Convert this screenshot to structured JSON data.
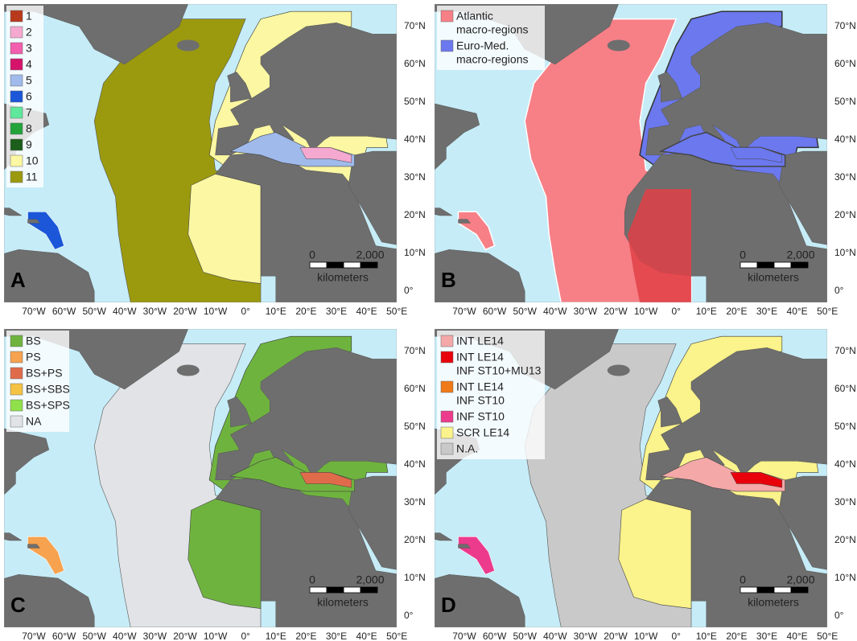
{
  "panels": [
    {
      "letter": "A",
      "legend": [
        {
          "lines": [
            "1"
          ],
          "color": "#b8391b"
        },
        {
          "lines": [
            "2"
          ],
          "color": "#f5a9d0"
        },
        {
          "lines": [
            "3"
          ],
          "color": "#f35eae"
        },
        {
          "lines": [
            "4"
          ],
          "color": "#d5136b"
        },
        {
          "lines": [
            "5"
          ],
          "color": "#9fbaeb"
        },
        {
          "lines": [
            "6"
          ],
          "color": "#1b57d8"
        },
        {
          "lines": [
            "7"
          ],
          "color": "#5fe89c"
        },
        {
          "lines": [
            "8"
          ],
          "color": "#22a43a"
        },
        {
          "lines": [
            "9"
          ],
          "color": "#1c5e1b"
        },
        {
          "lines": [
            "10"
          ],
          "color": "#fbf7a2"
        },
        {
          "lines": [
            "11"
          ],
          "color": "#9b9a0f"
        }
      ]
    },
    {
      "letter": "B",
      "legend": [
        {
          "lines": [
            "Atlantic",
            "macro-regions"
          ],
          "color": "#f77f86"
        },
        {
          "lines": [
            "Euro-Med.",
            "macro-regions"
          ],
          "color": "#6b78ee"
        }
      ]
    },
    {
      "letter": "C",
      "legend": [
        {
          "lines": [
            "BS"
          ],
          "color": "#6fb33f"
        },
        {
          "lines": [
            "PS"
          ],
          "color": "#f6a24f"
        },
        {
          "lines": [
            "BS+PS"
          ],
          "color": "#e06b4b"
        },
        {
          "lines": [
            "BS+SBS"
          ],
          "color": "#f5c343"
        },
        {
          "lines": [
            "BS+SPS"
          ],
          "color": "#90e04b"
        },
        {
          "lines": [
            "NA"
          ],
          "color": "#e1e3e6"
        }
      ]
    },
    {
      "letter": "D",
      "legend": [
        {
          "lines": [
            "INT LE14"
          ],
          "color": "#f4a8a8"
        },
        {
          "lines": [
            "INT LE14",
            "INF ST10+MU13"
          ],
          "color": "#e8000b"
        },
        {
          "lines": [
            "INT LE14",
            "INF ST10"
          ],
          "color": "#f07a18"
        },
        {
          "lines": [
            "INF ST10"
          ],
          "color": "#ec3b8d"
        },
        {
          "lines": [
            "SCR LE14"
          ],
          "color": "#fbf38b"
        },
        {
          "lines": [
            "N.A."
          ],
          "color": "#c9c9c9"
        }
      ]
    }
  ],
  "lon_labels": [
    "70°W",
    "60°W",
    "50°W",
    "40°W",
    "30°W",
    "20°W",
    "10°W",
    "0°",
    "10°E",
    "20°E",
    "30°E",
    "40°E",
    "50°E"
  ],
  "lat_labels": [
    "70°N",
    "60°N",
    "50°N",
    "40°N",
    "30°N",
    "20°N",
    "10°N",
    "0°"
  ],
  "scale": {
    "start": "0",
    "end": "2,000",
    "unit": "kilometers"
  }
}
